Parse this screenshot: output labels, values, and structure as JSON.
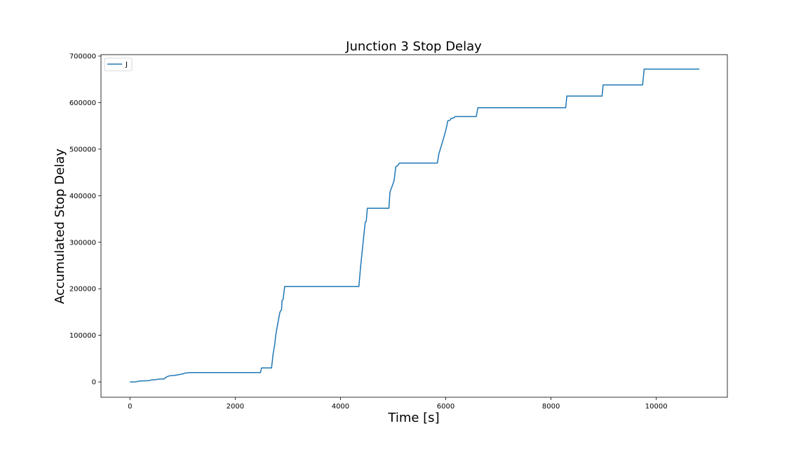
{
  "chart_data": {
    "type": "line",
    "title": "Junction 3 Stop Delay",
    "xlabel": "Time [s]",
    "ylabel": "Accumulated Stop Delay",
    "xlim": [
      -550,
      11350
    ],
    "ylim": [
      -33000,
      703000
    ],
    "xticks": [
      0,
      2000,
      4000,
      6000,
      8000,
      10000
    ],
    "yticks": [
      0,
      100000,
      200000,
      300000,
      400000,
      500000,
      600000,
      700000
    ],
    "grid": false,
    "legend": {
      "position": "top-left",
      "entries": [
        "J"
      ]
    },
    "series": [
      {
        "name": "J",
        "color": "#1f77b4",
        "points": [
          [
            0,
            0
          ],
          [
            100,
            0
          ],
          [
            150,
            1000
          ],
          [
            200,
            2000
          ],
          [
            350,
            2500
          ],
          [
            400,
            4000
          ],
          [
            500,
            5000
          ],
          [
            550,
            6000
          ],
          [
            650,
            6500
          ],
          [
            700,
            11000
          ],
          [
            750,
            13000
          ],
          [
            850,
            14000
          ],
          [
            900,
            15000
          ],
          [
            1000,
            17000
          ],
          [
            1050,
            19000
          ],
          [
            1150,
            20000
          ],
          [
            1200,
            20000
          ],
          [
            2480,
            20000
          ],
          [
            2500,
            30000
          ],
          [
            2690,
            30000
          ],
          [
            2720,
            60000
          ],
          [
            2750,
            80000
          ],
          [
            2770,
            100000
          ],
          [
            2800,
            120000
          ],
          [
            2850,
            150000
          ],
          [
            2880,
            155000
          ],
          [
            2890,
            175000
          ],
          [
            2910,
            177000
          ],
          [
            2940,
            205000
          ],
          [
            4350,
            205000
          ],
          [
            4380,
            245000
          ],
          [
            4430,
            300000
          ],
          [
            4470,
            343000
          ],
          [
            4490,
            345000
          ],
          [
            4510,
            373000
          ],
          [
            4920,
            373000
          ],
          [
            4940,
            408000
          ],
          [
            4980,
            420000
          ],
          [
            5020,
            433000
          ],
          [
            5050,
            462000
          ],
          [
            5080,
            464000
          ],
          [
            5120,
            470000
          ],
          [
            5840,
            470000
          ],
          [
            5870,
            490000
          ],
          [
            5950,
            520000
          ],
          [
            6000,
            540000
          ],
          [
            6040,
            561000
          ],
          [
            6080,
            562000
          ],
          [
            6100,
            566000
          ],
          [
            6150,
            567000
          ],
          [
            6180,
            570000
          ],
          [
            6580,
            570000
          ],
          [
            6610,
            589000
          ],
          [
            8280,
            589000
          ],
          [
            8300,
            614000
          ],
          [
            8970,
            614000
          ],
          [
            8990,
            638000
          ],
          [
            9740,
            638000
          ],
          [
            9770,
            672000
          ],
          [
            10820,
            672000
          ]
        ]
      }
    ]
  }
}
